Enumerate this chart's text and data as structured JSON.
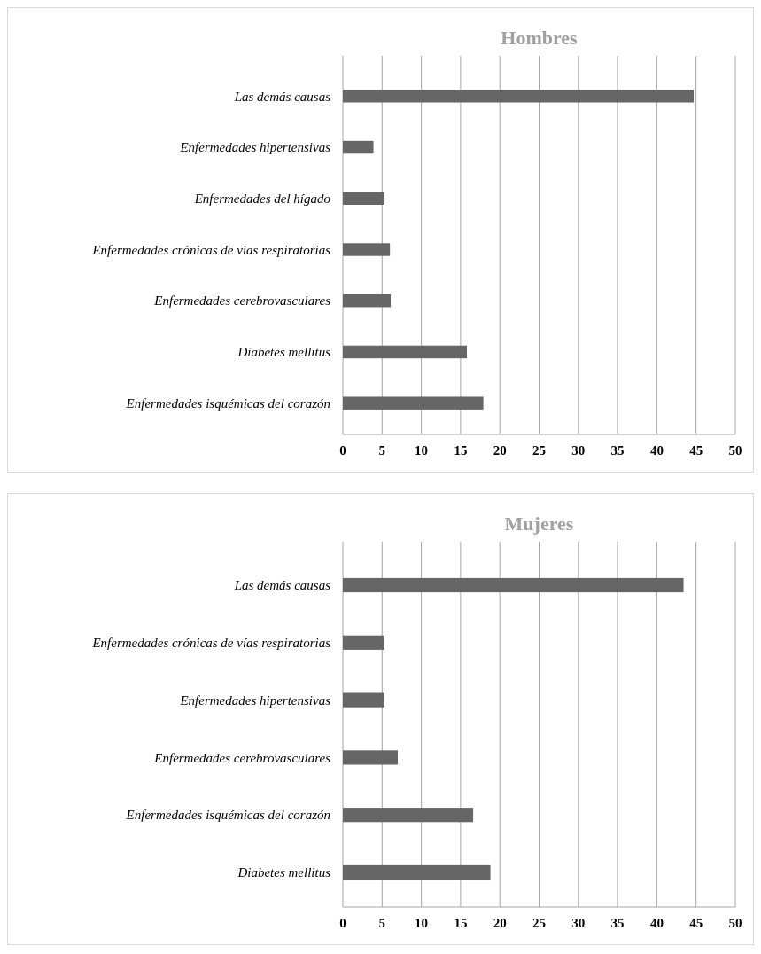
{
  "chart_data": [
    {
      "type": "bar",
      "orientation": "horizontal",
      "title": "Hombres",
      "categories": [
        "Las demás causas",
        "Enfermedades hipertensivas",
        "Enfermedades del hígado",
        "Enfermedades crónicas de vías respiratorias",
        "Enfermedades cerebrovasculares",
        "Diabetes mellitus",
        "Enfermedades isquémicas del corazón"
      ],
      "values": [
        44.7,
        3.9,
        5.3,
        6.0,
        6.1,
        15.8,
        17.9
      ],
      "color": "#666666",
      "xlim": [
        0,
        50
      ],
      "xticks": [
        0,
        5,
        10,
        15,
        20,
        25,
        30,
        35,
        40,
        45,
        50
      ],
      "grid": "x"
    },
    {
      "type": "bar",
      "orientation": "horizontal",
      "title": "Mujeres",
      "categories": [
        "Las demás causas",
        "Enfermedades crónicas de vías respiratorias",
        "Enfermedades hipertensivas",
        "Enfermedades cerebrovasculares",
        "Enfermedades isquémicas del corazón",
        "Diabetes mellitus"
      ],
      "values": [
        43.4,
        5.3,
        5.3,
        7.0,
        16.6,
        18.8
      ],
      "color": "#666666",
      "xlim": [
        0,
        50
      ],
      "xticks": [
        0,
        5,
        10,
        15,
        20,
        25,
        30,
        35,
        40,
        45,
        50
      ],
      "grid": "x"
    }
  ]
}
